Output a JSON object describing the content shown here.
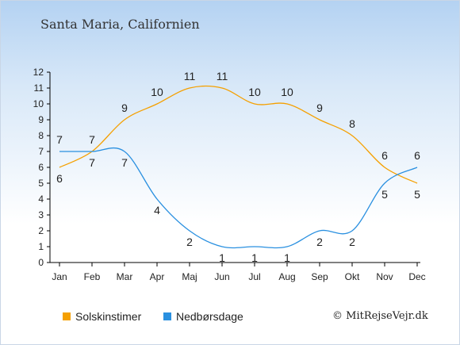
{
  "title": "Santa Maria, Californien",
  "copyright": "© MitRejseVejr.dk",
  "colors": {
    "sun": "#f5a000",
    "rain": "#2a90e0"
  },
  "chart_data": {
    "type": "line",
    "categories": [
      "Jan",
      "Feb",
      "Mar",
      "Apr",
      "Maj",
      "Jun",
      "Jul",
      "Aug",
      "Sep",
      "Okt",
      "Nov",
      "Dec"
    ],
    "ylim": [
      0,
      12
    ],
    "yticks": [
      "0",
      "1",
      "2",
      "3",
      "4",
      "5",
      "6",
      "7",
      "8",
      "9",
      "10",
      "11",
      "12"
    ],
    "grid": false,
    "legend_position": "bottom",
    "series": [
      {
        "name": "Solskinstimer",
        "color": "#f5a000",
        "values": [
          6,
          7,
          9,
          10,
          11,
          11,
          10,
          10,
          9,
          8,
          6,
          5
        ],
        "labels": [
          "6",
          "7",
          "9",
          "10",
          "11",
          "11",
          "10",
          "10",
          "9",
          "8",
          "6",
          "5"
        ]
      },
      {
        "name": "Nedbørsdage",
        "color": "#2a90e0",
        "values": [
          7,
          7,
          7,
          4,
          2,
          1,
          1,
          1,
          2,
          2,
          5,
          6
        ],
        "labels": [
          "7",
          "7",
          "7",
          "4",
          "2",
          "1",
          "1",
          "1",
          "2",
          "2",
          "5",
          "6"
        ]
      }
    ]
  }
}
